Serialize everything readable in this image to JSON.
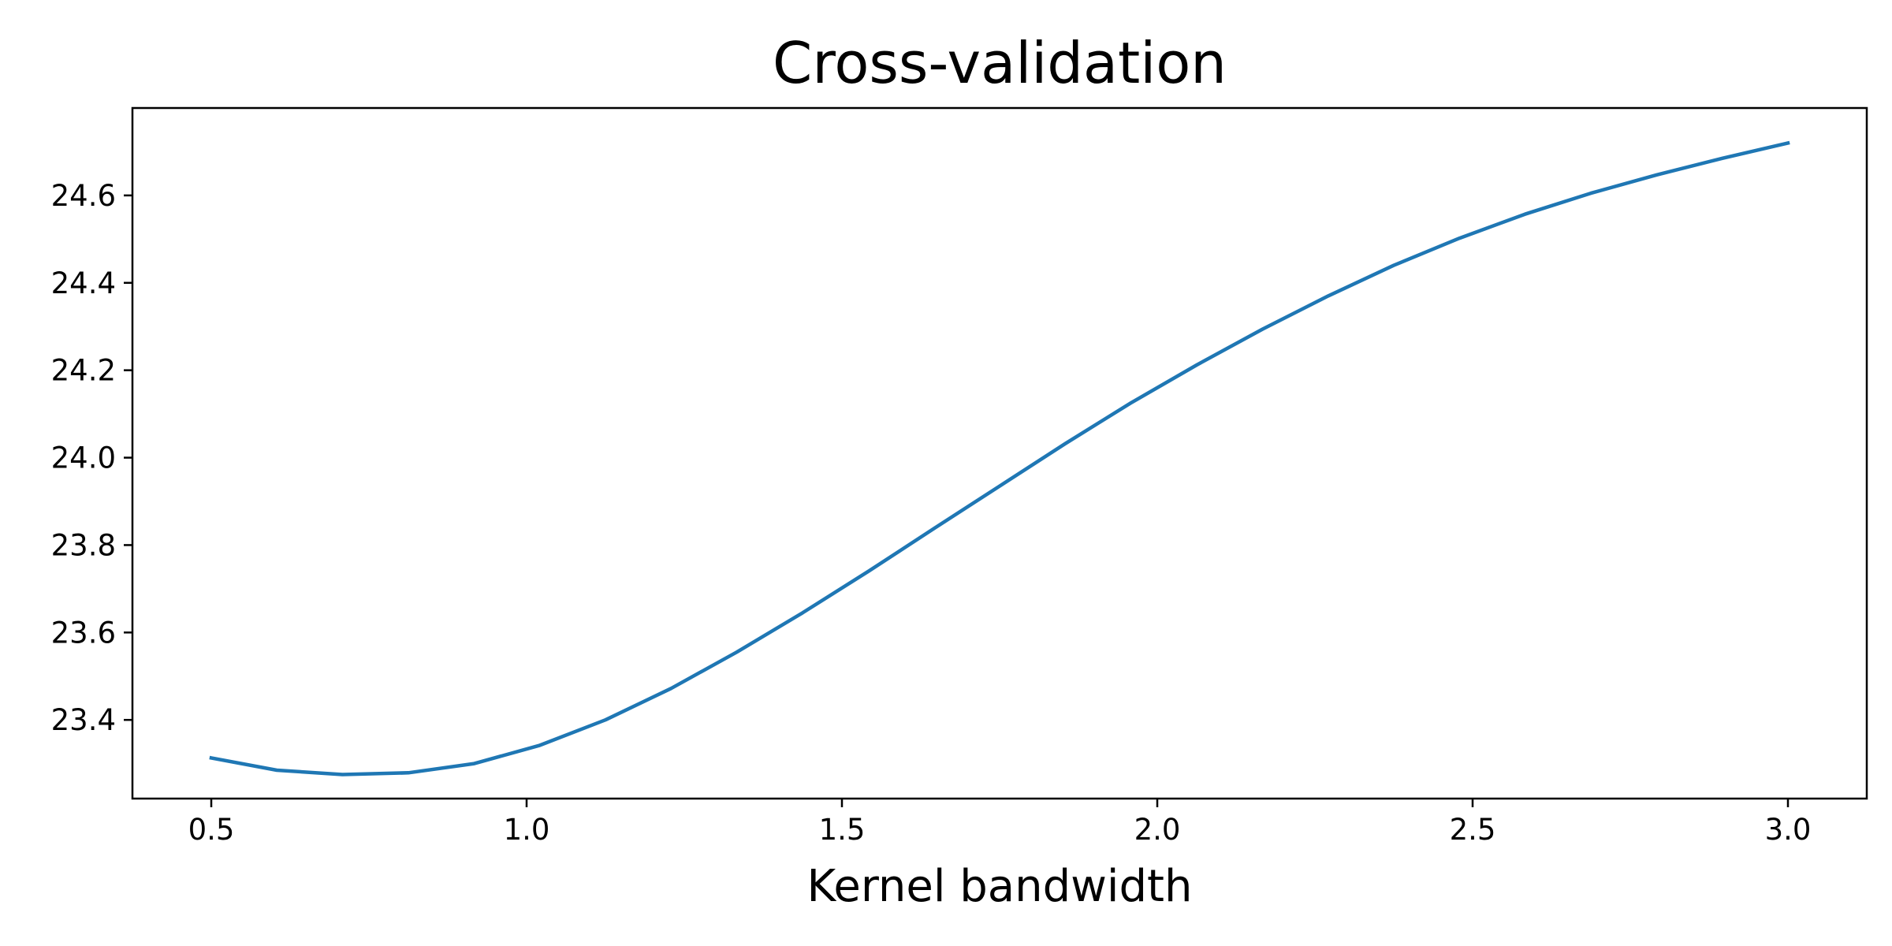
{
  "chart_data": {
    "type": "line",
    "title": "Cross-validation",
    "xlabel": "Kernel bandwidth",
    "ylabel": "",
    "xlim": [
      0.375,
      3.125
    ],
    "ylim": [
      23.22,
      24.8
    ],
    "grid": false,
    "legend": "none",
    "x_ticks": [
      {
        "value": 0.5,
        "label": "0.5"
      },
      {
        "value": 1.0,
        "label": "1.0"
      },
      {
        "value": 1.5,
        "label": "1.5"
      },
      {
        "value": 2.0,
        "label": "2.0"
      },
      {
        "value": 2.5,
        "label": "2.5"
      },
      {
        "value": 3.0,
        "label": "3.0"
      }
    ],
    "y_ticks": [
      {
        "value": 23.4,
        "label": "23.4"
      },
      {
        "value": 23.6,
        "label": "23.6"
      },
      {
        "value": 23.8,
        "label": "23.8"
      },
      {
        "value": 24.0,
        "label": "24.0"
      },
      {
        "value": 24.2,
        "label": "24.2"
      },
      {
        "value": 24.4,
        "label": "24.4"
      },
      {
        "value": 24.6,
        "label": "24.6"
      }
    ],
    "series": [
      {
        "color": "#1f77b4",
        "x": [
          0.5,
          0.604,
          0.708,
          0.8125,
          0.917,
          1.021,
          1.125,
          1.229,
          1.333,
          1.4375,
          1.542,
          1.646,
          1.75,
          1.854,
          1.958,
          2.0625,
          2.167,
          2.271,
          2.375,
          2.479,
          2.583,
          2.6875,
          2.792,
          2.896,
          3.0
        ],
        "y": [
          23.313,
          23.285,
          23.275,
          23.279,
          23.3,
          23.342,
          23.4,
          23.472,
          23.555,
          23.645,
          23.74,
          23.838,
          23.935,
          24.032,
          24.125,
          24.212,
          24.294,
          24.37,
          24.44,
          24.502,
          24.557,
          24.605,
          24.647,
          24.685,
          24.72
        ]
      }
    ]
  }
}
